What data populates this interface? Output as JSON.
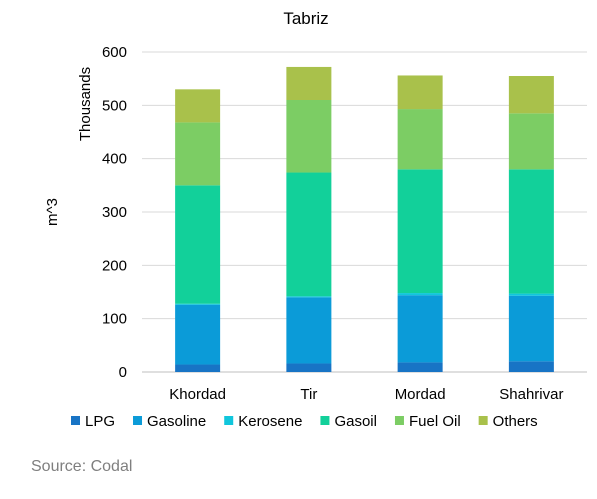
{
  "chart_data": {
    "type": "bar",
    "stacked": true,
    "title": "Tabriz",
    "ylabel": "m^3",
    "yunit_label": "Thousands",
    "ylim": [
      0,
      600
    ],
    "yticks": [
      0,
      100,
      200,
      300,
      400,
      500,
      600
    ],
    "grid": true,
    "legend_position": "bottom",
    "categories": [
      "Khordad",
      "Tir",
      "Mordad",
      "Shahrivar"
    ],
    "series": [
      {
        "name": "LPG",
        "color": "#1874c5",
        "values": [
          14,
          16,
          18,
          20
        ]
      },
      {
        "name": "Gasoline",
        "color": "#0b9bd8",
        "values": [
          112,
          124,
          126,
          123
        ]
      },
      {
        "name": "Kerosene",
        "color": "#10c6dc",
        "values": [
          2,
          2,
          4,
          4
        ]
      },
      {
        "name": "Gasoil",
        "color": "#12d09a",
        "values": [
          222,
          232,
          232,
          233
        ]
      },
      {
        "name": "Fuel Oil",
        "color": "#7ccd64",
        "values": [
          118,
          136,
          113,
          105
        ]
      },
      {
        "name": "Others",
        "color": "#a9c14b",
        "values": [
          62,
          62,
          63,
          70
        ]
      }
    ]
  },
  "source_text": "Source: Codal"
}
